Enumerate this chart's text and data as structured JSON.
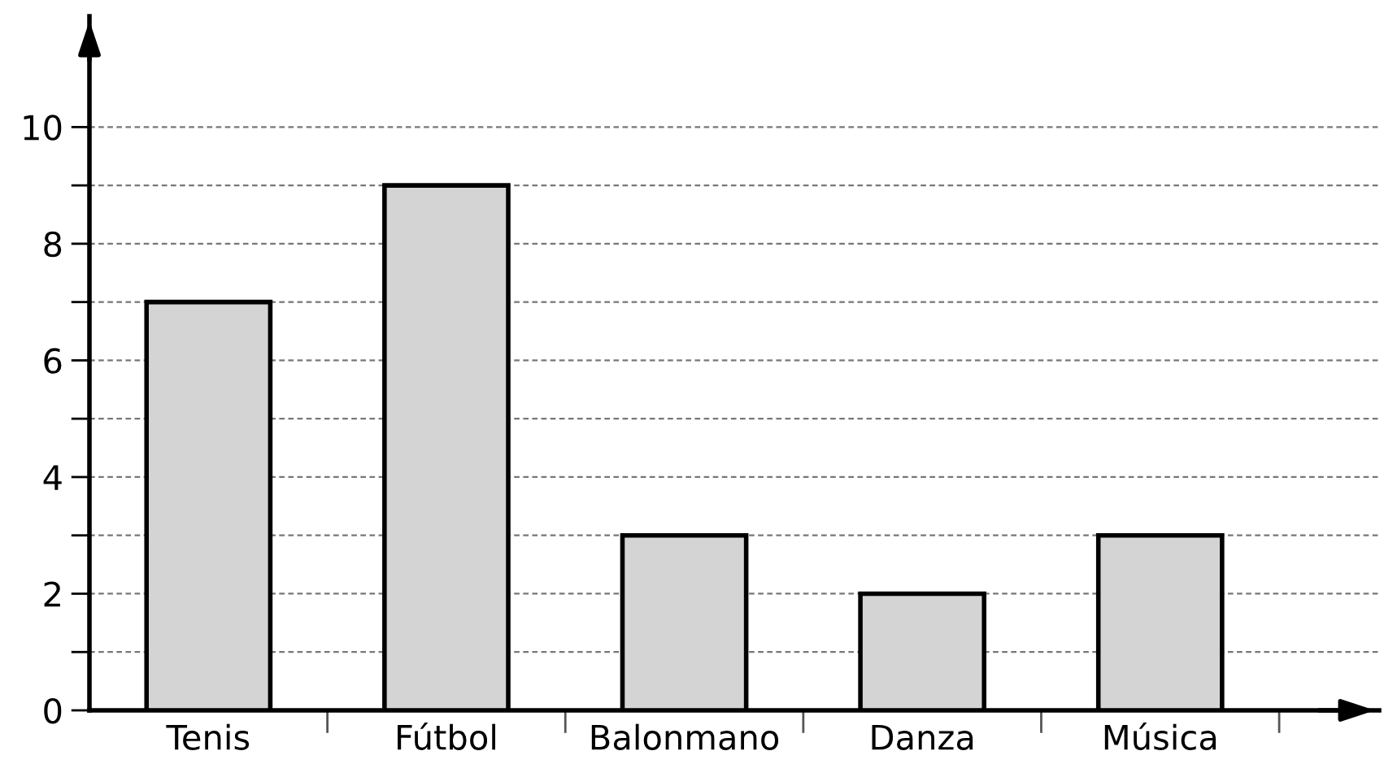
{
  "chart_data": {
    "type": "bar",
    "categories": [
      "Tenis",
      "Fútbol",
      "Balonmano",
      "Danza",
      "Música"
    ],
    "values": [
      7,
      9,
      3,
      2,
      3
    ],
    "color": "#d4d4d4",
    "ylim": [
      0,
      11.9
    ],
    "yticks": [
      0,
      {
        "value": 1,
        "label": null
      },
      2,
      {
        "value": 3,
        "label": null
      },
      4,
      {
        "value": 5,
        "label": null
      },
      6,
      {
        "value": 7,
        "label": null
      },
      8,
      {
        "value": 9,
        "label": null
      },
      10
    ],
    "grid": "y"
  }
}
